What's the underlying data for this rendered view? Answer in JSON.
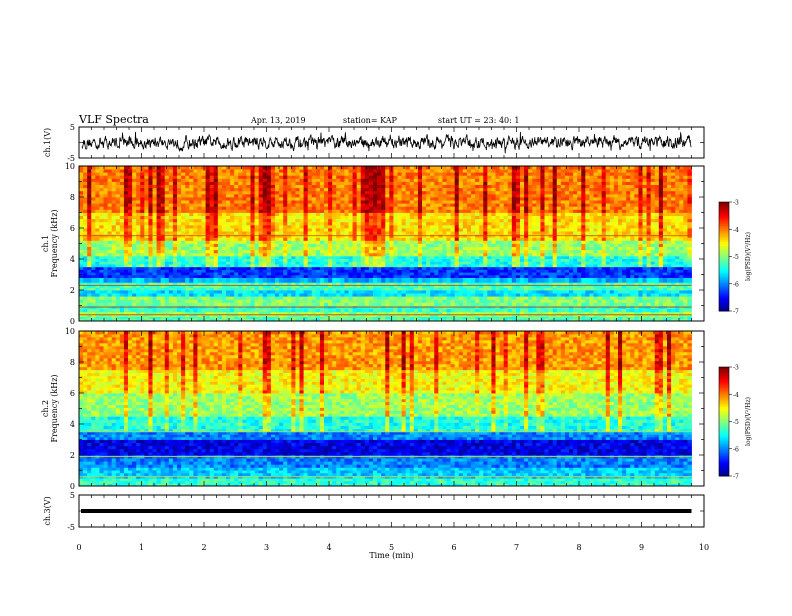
{
  "header": {
    "title": "VLF Spectra",
    "date": "Apr. 13, 2019",
    "station": "station= KAP",
    "start_time": "start  UT =   23: 40: 1"
  },
  "chart_data": [
    {
      "type": "line",
      "name": "ch1-waveform",
      "ylabel": "ch.1(V)",
      "ylim": [
        -5,
        5
      ],
      "yticks": [
        "5",
        "-5"
      ],
      "xlim": [
        0,
        10
      ],
      "color": "#000000",
      "note_values": "dense noisy trace roughly between -3 and +3 V centered near 0 V"
    },
    {
      "type": "heatmap",
      "name": "ch1-spectrogram",
      "ylabel_line1": "ch.1",
      "ylabel_line2": "Frequency (kHz)",
      "ylim": [
        0,
        10
      ],
      "yticks": [
        "0",
        "2",
        "4",
        "6",
        "8",
        "10"
      ],
      "xlim": [
        0,
        9.8
      ],
      "colorbar": {
        "label": "log(PSD)(V²/Hz)",
        "range": [
          -7,
          -3
        ],
        "ticks": [
          "-3",
          "-4",
          "-5",
          "-6",
          "-7"
        ]
      },
      "bands": [
        {
          "f0": 0.0,
          "f1": 0.3,
          "level": -5.2
        },
        {
          "f0": 0.3,
          "f1": 0.6,
          "level": -4.9
        },
        {
          "f0": 0.6,
          "f1": 1.0,
          "level": -5.3
        },
        {
          "f0": 1.0,
          "f1": 1.6,
          "level": -5.0
        },
        {
          "f0": 1.6,
          "f1": 2.0,
          "level": -5.6
        },
        {
          "f0": 2.0,
          "f1": 2.5,
          "level": -5.2
        },
        {
          "f0": 2.5,
          "f1": 2.8,
          "level": -5.8
        },
        {
          "f0": 2.8,
          "f1": 3.5,
          "level": -6.3
        },
        {
          "f0": 3.5,
          "f1": 4.2,
          "level": -5.4
        },
        {
          "f0": 4.2,
          "f1": 5.2,
          "level": -4.9
        },
        {
          "f0": 5.2,
          "f1": 7.0,
          "level": -4.4
        },
        {
          "f0": 7.0,
          "f1": 10.0,
          "level": -4.0
        }
      ]
    },
    {
      "type": "heatmap",
      "name": "ch2-spectrogram",
      "ylabel_line1": "ch.2",
      "ylabel_line2": "Frequency (kHz)",
      "ylim": [
        0,
        10
      ],
      "yticks": [
        "0",
        "2",
        "4",
        "6",
        "8",
        "10"
      ],
      "xlim": [
        0,
        9.8
      ],
      "colorbar": {
        "label": "log(PSD)(V²/Hz)",
        "range": [
          -7,
          -3
        ],
        "ticks": [
          "-3",
          "-4",
          "-5",
          "-6",
          "-7"
        ]
      },
      "bands": [
        {
          "f0": 0.0,
          "f1": 0.5,
          "level": -5.3
        },
        {
          "f0": 0.5,
          "f1": 1.2,
          "level": -5.7
        },
        {
          "f0": 1.2,
          "f1": 2.0,
          "level": -6.0
        },
        {
          "f0": 2.0,
          "f1": 3.0,
          "level": -6.6
        },
        {
          "f0": 3.0,
          "f1": 3.5,
          "level": -6.0
        },
        {
          "f0": 3.5,
          "f1": 4.5,
          "level": -5.4
        },
        {
          "f0": 4.5,
          "f1": 6.0,
          "level": -4.9
        },
        {
          "f0": 6.0,
          "f1": 7.5,
          "level": -4.5
        },
        {
          "f0": 7.5,
          "f1": 10.0,
          "level": -4.1
        }
      ]
    },
    {
      "type": "line",
      "name": "ch3-waveform",
      "ylabel": "ch.3(V)",
      "ylim": [
        -5,
        5
      ],
      "yticks": [
        "5",
        "-5"
      ],
      "xlim": [
        0,
        10
      ],
      "color": "#000000",
      "constant_value": 0
    }
  ],
  "xaxis": {
    "label": "Time (min)",
    "ticks": [
      "0",
      "1",
      "2",
      "3",
      "4",
      "5",
      "6",
      "7",
      "8",
      "9",
      "10"
    ]
  }
}
